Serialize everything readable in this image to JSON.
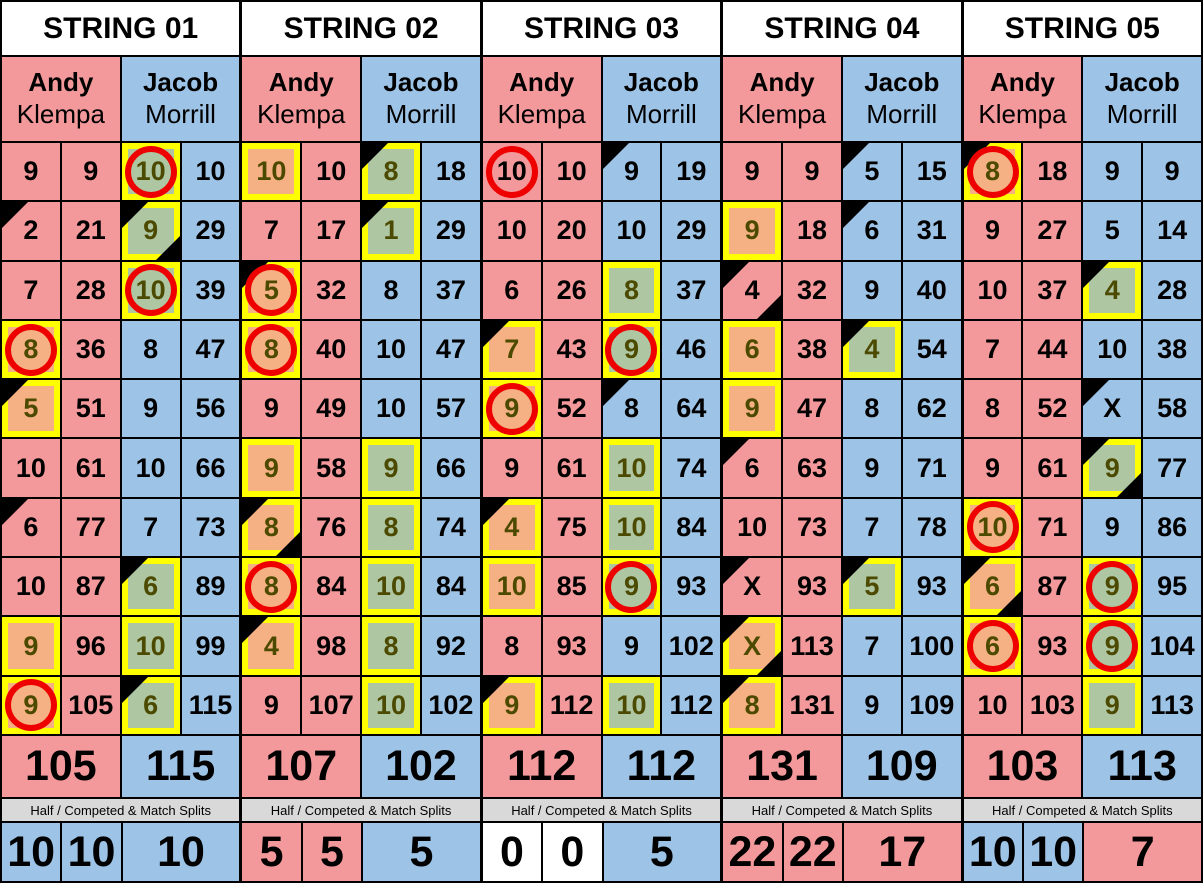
{
  "splits_label": "Half / Competed & Match Splits",
  "palette": {
    "andy_pink": "#F4999B",
    "jacob_blue": "#9DC3E6",
    "split_orange": "#F5B183",
    "split_green": "#AEC6A2",
    "highlight_yellow": "#FFFF00",
    "circle_red": "#EE0000",
    "label_gray": "#D9D9D9",
    "marked_number_olive": "#4C4A00"
  },
  "strings": [
    {
      "title": "STRING 01",
      "players": [
        {
          "first": "Andy",
          "last": "Klempa",
          "color": "pink"
        },
        {
          "first": "Jacob",
          "last": "Morrill",
          "color": "blue"
        }
      ],
      "frames": [
        {
          "andy": {
            "v": "9"
          },
          "andy_cum": "9",
          "jacob": {
            "v": "10",
            "box": "green",
            "circle": true
          },
          "jacob_cum": "10"
        },
        {
          "andy": {
            "v": "2",
            "tri": [
              "tl"
            ]
          },
          "andy_cum": "21",
          "jacob": {
            "v": "9",
            "box": "green",
            "tri": [
              "tl",
              "br"
            ]
          },
          "jacob_cum": "29"
        },
        {
          "andy": {
            "v": "7"
          },
          "andy_cum": "28",
          "jacob": {
            "v": "10",
            "box": "green",
            "circle": true
          },
          "jacob_cum": "39"
        },
        {
          "andy": {
            "v": "8",
            "box": "orange",
            "circle": true
          },
          "andy_cum": "36",
          "jacob": {
            "v": "8"
          },
          "jacob_cum": "47"
        },
        {
          "andy": {
            "v": "5",
            "box": "orange",
            "tri": [
              "tl"
            ]
          },
          "andy_cum": "51",
          "jacob": {
            "v": "9"
          },
          "jacob_cum": "56"
        },
        {
          "andy": {
            "v": "10"
          },
          "andy_cum": "61",
          "jacob": {
            "v": "10"
          },
          "jacob_cum": "66"
        },
        {
          "andy": {
            "v": "6",
            "tri": [
              "tl"
            ]
          },
          "andy_cum": "77",
          "jacob": {
            "v": "7"
          },
          "jacob_cum": "73"
        },
        {
          "andy": {
            "v": "10"
          },
          "andy_cum": "87",
          "jacob": {
            "v": "6",
            "box": "green",
            "tri": [
              "tl"
            ]
          },
          "jacob_cum": "89"
        },
        {
          "andy": {
            "v": "9",
            "box": "orange"
          },
          "andy_cum": "96",
          "jacob": {
            "v": "10",
            "box": "green"
          },
          "jacob_cum": "99"
        },
        {
          "andy": {
            "v": "9",
            "box": "orange",
            "circle": true
          },
          "andy_cum": "105",
          "jacob": {
            "v": "6",
            "box": "green",
            "tri": [
              "tl"
            ]
          },
          "jacob_cum": "115"
        }
      ],
      "totals": {
        "andy": "105",
        "jacob": "115"
      },
      "splits": [
        {
          "v": "10",
          "bg": "blue"
        },
        {
          "v": "10",
          "bg": "blue"
        },
        {
          "v": "10",
          "bg": "blue"
        }
      ]
    },
    {
      "title": "STRING 02",
      "players": [
        {
          "first": "Andy",
          "last": "Klempa",
          "color": "pink"
        },
        {
          "first": "Jacob",
          "last": "Morrill",
          "color": "blue"
        }
      ],
      "frames": [
        {
          "andy": {
            "v": "10",
            "box": "orange"
          },
          "andy_cum": "10",
          "jacob": {
            "v": "8",
            "box": "green",
            "tri": [
              "tl"
            ]
          },
          "jacob_cum": "18"
        },
        {
          "andy": {
            "v": "7"
          },
          "andy_cum": "17",
          "jacob": {
            "v": "1",
            "box": "green",
            "tri": [
              "tl"
            ]
          },
          "jacob_cum": "29"
        },
        {
          "andy": {
            "v": "5",
            "box": "orange",
            "tri": [
              "tl"
            ],
            "circle": true
          },
          "andy_cum": "32",
          "jacob": {
            "v": "8"
          },
          "jacob_cum": "37"
        },
        {
          "andy": {
            "v": "8",
            "box": "orange",
            "circle": true
          },
          "andy_cum": "40",
          "jacob": {
            "v": "10"
          },
          "jacob_cum": "47"
        },
        {
          "andy": {
            "v": "9"
          },
          "andy_cum": "49",
          "jacob": {
            "v": "10"
          },
          "jacob_cum": "57"
        },
        {
          "andy": {
            "v": "9",
            "box": "orange"
          },
          "andy_cum": "58",
          "jacob": {
            "v": "9",
            "box": "green"
          },
          "jacob_cum": "66"
        },
        {
          "andy": {
            "v": "8",
            "box": "orange",
            "tri": [
              "tl",
              "br"
            ]
          },
          "andy_cum": "76",
          "jacob": {
            "v": "8",
            "box": "green"
          },
          "jacob_cum": "74"
        },
        {
          "andy": {
            "v": "8",
            "box": "orange",
            "circle": true
          },
          "andy_cum": "84",
          "jacob": {
            "v": "10",
            "box": "green"
          },
          "jacob_cum": "84"
        },
        {
          "andy": {
            "v": "4",
            "box": "orange",
            "tri": [
              "tl"
            ]
          },
          "andy_cum": "98",
          "jacob": {
            "v": "8",
            "box": "green"
          },
          "jacob_cum": "92"
        },
        {
          "andy": {
            "v": "9"
          },
          "andy_cum": "107",
          "jacob": {
            "v": "10",
            "box": "green"
          },
          "jacob_cum": "102"
        }
      ],
      "totals": {
        "andy": "107",
        "jacob": "102"
      },
      "splits": [
        {
          "v": "5",
          "bg": "pink"
        },
        {
          "v": "5",
          "bg": "pink"
        },
        {
          "v": "5",
          "bg": "blue"
        }
      ]
    },
    {
      "title": "STRING 03",
      "players": [
        {
          "first": "Andy",
          "last": "Klempa",
          "color": "pink"
        },
        {
          "first": "Jacob",
          "last": "Morrill",
          "color": "blue"
        }
      ],
      "frames": [
        {
          "andy": {
            "v": "10",
            "circle": true
          },
          "andy_cum": "10",
          "jacob": {
            "v": "9",
            "tri": [
              "tl"
            ]
          },
          "jacob_cum": "19"
        },
        {
          "andy": {
            "v": "10"
          },
          "andy_cum": "20",
          "jacob": {
            "v": "10"
          },
          "jacob_cum": "29"
        },
        {
          "andy": {
            "v": "6"
          },
          "andy_cum": "26",
          "jacob": {
            "v": "8",
            "box": "green"
          },
          "jacob_cum": "37"
        },
        {
          "andy": {
            "v": "7",
            "box": "orange",
            "tri": [
              "tl"
            ]
          },
          "andy_cum": "43",
          "jacob": {
            "v": "9",
            "box": "green",
            "circle": true
          },
          "jacob_cum": "46"
        },
        {
          "andy": {
            "v": "9",
            "box": "orange",
            "circle": true
          },
          "andy_cum": "52",
          "jacob": {
            "v": "8",
            "tri": [
              "tl"
            ]
          },
          "jacob_cum": "64"
        },
        {
          "andy": {
            "v": "9"
          },
          "andy_cum": "61",
          "jacob": {
            "v": "10",
            "box": "green"
          },
          "jacob_cum": "74"
        },
        {
          "andy": {
            "v": "4",
            "box": "orange",
            "tri": [
              "tl"
            ]
          },
          "andy_cum": "75",
          "jacob": {
            "v": "10",
            "box": "green"
          },
          "jacob_cum": "84"
        },
        {
          "andy": {
            "v": "10",
            "box": "orange"
          },
          "andy_cum": "85",
          "jacob": {
            "v": "9",
            "box": "green",
            "circle": true
          },
          "jacob_cum": "93"
        },
        {
          "andy": {
            "v": "8"
          },
          "andy_cum": "93",
          "jacob": {
            "v": "9"
          },
          "jacob_cum": "102"
        },
        {
          "andy": {
            "v": "9",
            "box": "orange",
            "tri": [
              "tl"
            ]
          },
          "andy_cum": "112",
          "jacob": {
            "v": "10",
            "box": "green"
          },
          "jacob_cum": "112"
        }
      ],
      "totals": {
        "andy": "112",
        "jacob": "112"
      },
      "splits": [
        {
          "v": "0",
          "bg": "white"
        },
        {
          "v": "0",
          "bg": "white"
        },
        {
          "v": "5",
          "bg": "blue"
        }
      ]
    },
    {
      "title": "STRING 04",
      "players": [
        {
          "first": "Andy",
          "last": "Klempa",
          "color": "pink"
        },
        {
          "first": "Jacob",
          "last": "Morrill",
          "color": "blue"
        }
      ],
      "frames": [
        {
          "andy": {
            "v": "9"
          },
          "andy_cum": "9",
          "jacob": {
            "v": "5",
            "tri": [
              "tl"
            ]
          },
          "jacob_cum": "15"
        },
        {
          "andy": {
            "v": "9",
            "box": "orange"
          },
          "andy_cum": "18",
          "jacob": {
            "v": "6",
            "tri": [
              "tl"
            ]
          },
          "jacob_cum": "31"
        },
        {
          "andy": {
            "v": "4",
            "tri": [
              "tl",
              "br"
            ]
          },
          "andy_cum": "32",
          "jacob": {
            "v": "9"
          },
          "jacob_cum": "40"
        },
        {
          "andy": {
            "v": "6",
            "box": "orange"
          },
          "andy_cum": "38",
          "jacob": {
            "v": "4",
            "box": "green",
            "tri": [
              "tl"
            ]
          },
          "jacob_cum": "54"
        },
        {
          "andy": {
            "v": "9",
            "box": "orange"
          },
          "andy_cum": "47",
          "jacob": {
            "v": "8"
          },
          "jacob_cum": "62"
        },
        {
          "andy": {
            "v": "6",
            "tri": [
              "tl"
            ]
          },
          "andy_cum": "63",
          "jacob": {
            "v": "9"
          },
          "jacob_cum": "71"
        },
        {
          "andy": {
            "v": "10"
          },
          "andy_cum": "73",
          "jacob": {
            "v": "7"
          },
          "jacob_cum": "78"
        },
        {
          "andy": {
            "v": "X",
            "tri": [
              "tl"
            ]
          },
          "andy_cum": "93",
          "jacob": {
            "v": "5",
            "box": "green",
            "tri": [
              "tl"
            ]
          },
          "jacob_cum": "93"
        },
        {
          "andy": {
            "v": "X",
            "box": "orange",
            "tri": [
              "tl",
              "br"
            ]
          },
          "andy_cum": "113",
          "jacob": {
            "v": "7"
          },
          "jacob_cum": "100"
        },
        {
          "andy": {
            "v": "8",
            "box": "orange",
            "tri": [
              "tl"
            ]
          },
          "andy_cum": "131",
          "jacob": {
            "v": "9"
          },
          "jacob_cum": "109"
        }
      ],
      "totals": {
        "andy": "131",
        "jacob": "109"
      },
      "splits": [
        {
          "v": "22",
          "bg": "pink"
        },
        {
          "v": "22",
          "bg": "pink"
        },
        {
          "v": "17",
          "bg": "pink"
        }
      ]
    },
    {
      "title": "STRING 05",
      "players": [
        {
          "first": "Andy",
          "last": "Klempa",
          "color": "pink"
        },
        {
          "first": "Jacob",
          "last": "Morrill",
          "color": "blue"
        }
      ],
      "frames": [
        {
          "andy": {
            "v": "8",
            "box": "orange",
            "tri": [
              "tl"
            ],
            "circle": true
          },
          "andy_cum": "18",
          "jacob": {
            "v": "9"
          },
          "jacob_cum": "9"
        },
        {
          "andy": {
            "v": "9"
          },
          "andy_cum": "27",
          "jacob": {
            "v": "5"
          },
          "jacob_cum": "14"
        },
        {
          "andy": {
            "v": "10"
          },
          "andy_cum": "37",
          "jacob": {
            "v": "4",
            "box": "green",
            "tri": [
              "tl"
            ]
          },
          "jacob_cum": "28"
        },
        {
          "andy": {
            "v": "7"
          },
          "andy_cum": "44",
          "jacob": {
            "v": "10"
          },
          "jacob_cum": "38"
        },
        {
          "andy": {
            "v": "8"
          },
          "andy_cum": "52",
          "jacob": {
            "v": "X",
            "tri": [
              "tl"
            ]
          },
          "jacob_cum": "58"
        },
        {
          "andy": {
            "v": "9"
          },
          "andy_cum": "61",
          "jacob": {
            "v": "9",
            "box": "green",
            "tri": [
              "tl",
              "br"
            ]
          },
          "jacob_cum": "77"
        },
        {
          "andy": {
            "v": "10",
            "box": "orange",
            "circle": true
          },
          "andy_cum": "71",
          "jacob": {
            "v": "9"
          },
          "jacob_cum": "86"
        },
        {
          "andy": {
            "v": "6",
            "box": "orange",
            "tri": [
              "tl",
              "br"
            ]
          },
          "andy_cum": "87",
          "jacob": {
            "v": "9",
            "box": "green",
            "circle": true
          },
          "jacob_cum": "95"
        },
        {
          "andy": {
            "v": "6",
            "box": "orange",
            "circle": true
          },
          "andy_cum": "93",
          "jacob": {
            "v": "9",
            "box": "green",
            "circle": true
          },
          "jacob_cum": "104"
        },
        {
          "andy": {
            "v": "10"
          },
          "andy_cum": "103",
          "jacob": {
            "v": "9",
            "box": "green"
          },
          "jacob_cum": "113"
        }
      ],
      "totals": {
        "andy": "103",
        "jacob": "113"
      },
      "splits": [
        {
          "v": "10",
          "bg": "blue"
        },
        {
          "v": "10",
          "bg": "blue"
        },
        {
          "v": "7",
          "bg": "pink"
        }
      ]
    }
  ]
}
